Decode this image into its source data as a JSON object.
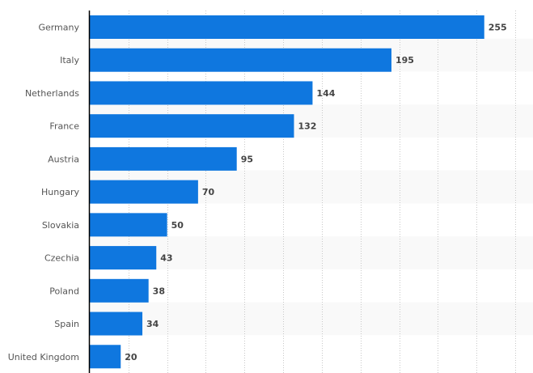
{
  "chart_data": {
    "type": "bar",
    "orientation": "horizontal",
    "title": "",
    "xlabel": "",
    "ylabel": "",
    "categories": [
      "Germany",
      "Italy",
      "Netherlands",
      "France",
      "Austria",
      "Hungary",
      "Slovakia",
      "Czechia",
      "Poland",
      "Spain",
      "United Kingdom"
    ],
    "values": [
      255,
      195,
      144,
      132,
      95,
      70,
      50,
      43,
      38,
      34,
      20
    ],
    "xlim": [
      0,
      275
    ],
    "tick_step": 25,
    "grid": true,
    "data_labels": true,
    "colors": {
      "bar": "#0f77df",
      "band": "#f9f9f9",
      "grid": "#c8c8c8",
      "axis": "#000000"
    }
  }
}
